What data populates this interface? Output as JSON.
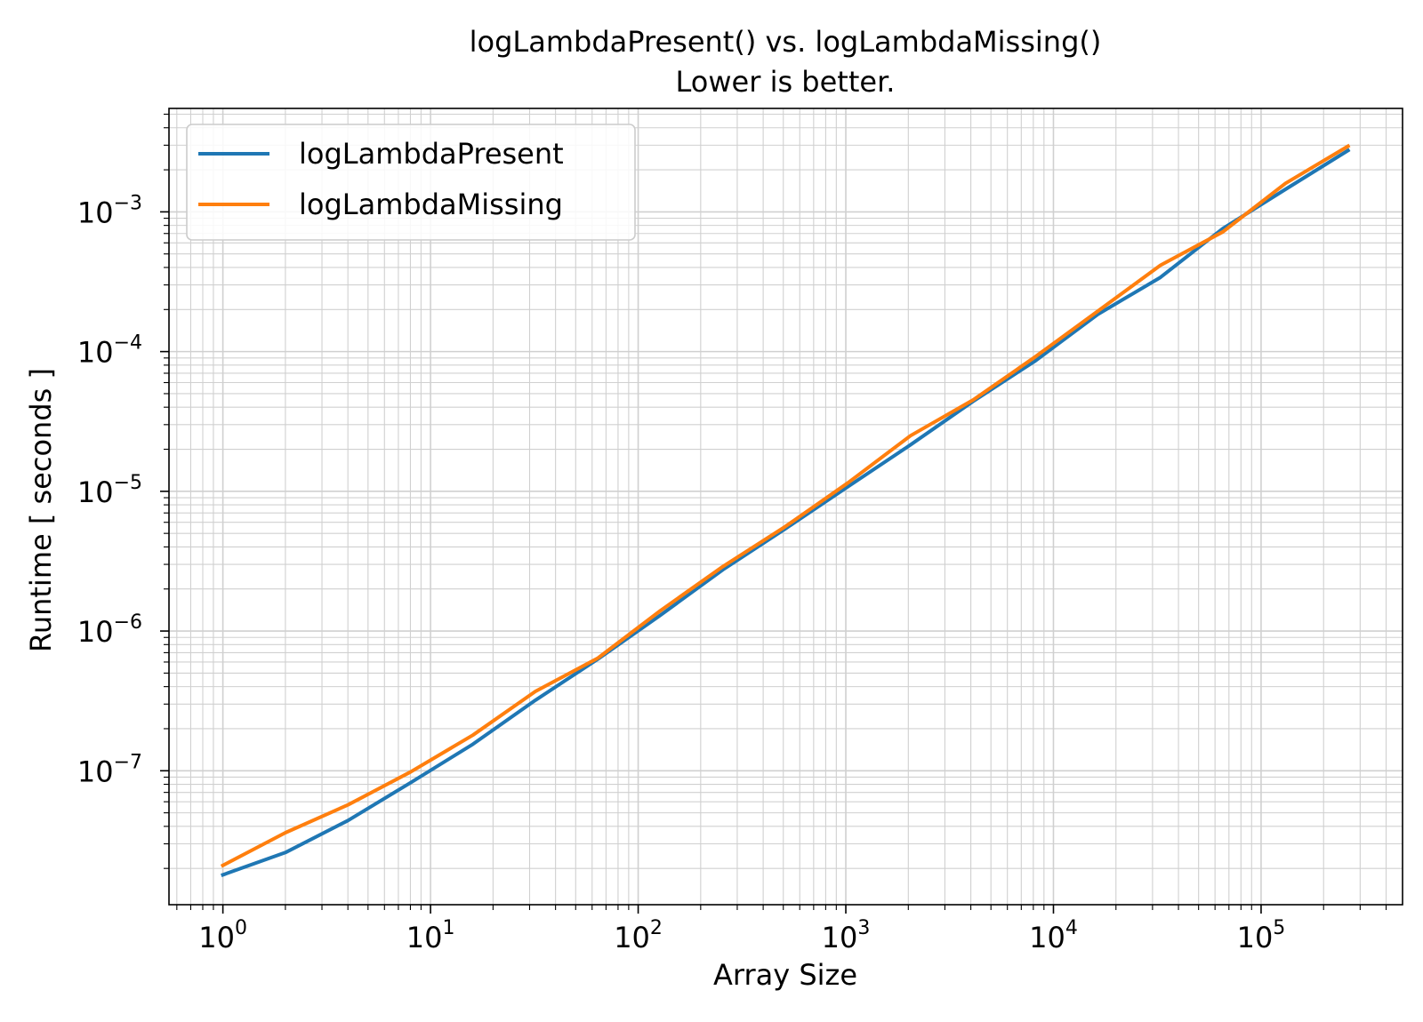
{
  "chart_data": {
    "type": "line",
    "title": "logLambdaPresent() vs. logLambdaMissing()",
    "subtitle": "Lower is better.",
    "xlabel": "Array Size",
    "ylabel": "Runtime [ seconds ]",
    "xscale": "log",
    "yscale": "log",
    "xlim": [
      0.55,
      480000
    ],
    "ylim": [
      1.1e-08,
      0.0055
    ],
    "grid": true,
    "legend_position": "top-left",
    "x_tick_labels": [
      {
        "value": 1,
        "base": "10",
        "exp": "0"
      },
      {
        "value": 10,
        "base": "10",
        "exp": "1"
      },
      {
        "value": 100,
        "base": "10",
        "exp": "2"
      },
      {
        "value": 1000,
        "base": "10",
        "exp": "3"
      },
      {
        "value": 10000,
        "base": "10",
        "exp": "4"
      },
      {
        "value": 100000,
        "base": "10",
        "exp": "5"
      }
    ],
    "y_tick_labels": [
      {
        "value": 1e-07,
        "base": "10",
        "exp": "−7"
      },
      {
        "value": 1e-06,
        "base": "10",
        "exp": "−6"
      },
      {
        "value": 1e-05,
        "base": "10",
        "exp": "−5"
      },
      {
        "value": 0.0001,
        "base": "10",
        "exp": "−4"
      },
      {
        "value": 0.001,
        "base": "10",
        "exp": "−3"
      }
    ],
    "x": [
      1,
      2,
      4,
      8,
      16,
      32,
      64,
      128,
      256,
      512,
      1024,
      2048,
      4096,
      8192,
      16384,
      32768,
      65536,
      131072,
      262144
    ],
    "series": [
      {
        "name": "logLambdaPresent",
        "color": "#1f77b4",
        "values": [
          1.8e-08,
          2.6e-08,
          4.4e-08,
          8.2e-08,
          1.55e-07,
          3.2e-07,
          6.3e-07,
          1.3e-06,
          2.75e-06,
          5.4e-06,
          1.08e-05,
          2.15e-05,
          4.4e-05,
          8.6e-05,
          0.000185,
          0.00034,
          0.00076,
          0.00145,
          0.00275
        ]
      },
      {
        "name": "logLambdaMissing",
        "color": "#ff7f0e",
        "values": [
          2.1e-08,
          3.6e-08,
          5.7e-08,
          9.8e-08,
          1.8e-07,
          3.7e-07,
          6.4e-07,
          1.4e-06,
          2.9e-06,
          5.6e-06,
          1.15e-05,
          2.5e-05,
          4.5e-05,
          9.2e-05,
          0.000195,
          0.000415,
          0.00072,
          0.0016,
          0.00295
        ]
      }
    ]
  }
}
